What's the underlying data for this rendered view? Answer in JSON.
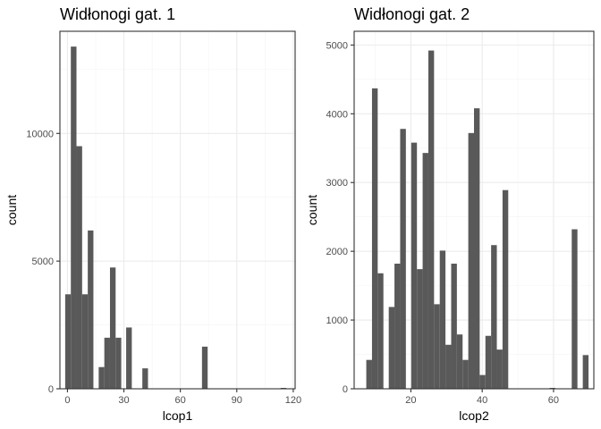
{
  "chart_data": [
    {
      "type": "bar",
      "subtype": "histogram",
      "title": "Widłonogi gat. 1",
      "xlabel": "lcop1",
      "ylabel": "count",
      "xlim": [
        -4,
        121
      ],
      "ylim": [
        0,
        14000
      ],
      "x_ticks": [
        0,
        30,
        60,
        90,
        120
      ],
      "y_ticks": [
        0,
        5000,
        10000
      ],
      "grid": true,
      "bar_color": "#595959",
      "bins": [
        {
          "x0": -1.2,
          "x1": 1.8,
          "count": 3700
        },
        {
          "x0": 1.8,
          "x1": 4.8,
          "count": 13400
        },
        {
          "x0": 4.8,
          "x1": 7.8,
          "count": 9500
        },
        {
          "x0": 7.8,
          "x1": 10.8,
          "count": 3700
        },
        {
          "x0": 10.8,
          "x1": 13.8,
          "count": 6200
        },
        {
          "x0": 16.6,
          "x1": 19.6,
          "count": 850
        },
        {
          "x0": 19.6,
          "x1": 22.6,
          "count": 2000
        },
        {
          "x0": 22.6,
          "x1": 25.6,
          "count": 4750
        },
        {
          "x0": 25.6,
          "x1": 28.6,
          "count": 2000
        },
        {
          "x0": 31.2,
          "x1": 34.2,
          "count": 2400
        },
        {
          "x0": 39.8,
          "x1": 42.8,
          "count": 800
        },
        {
          "x0": 71.5,
          "x1": 74.5,
          "count": 1650
        },
        {
          "x0": 113.3,
          "x1": 116.3,
          "count": 20
        }
      ]
    },
    {
      "type": "bar",
      "subtype": "histogram",
      "title": "Widłonogi gat. 2",
      "xlabel": "lcop2",
      "ylabel": "count",
      "xlim": [
        4.1,
        71.3
      ],
      "ylim": [
        0,
        5200
      ],
      "x_ticks": [
        20,
        40,
        60
      ],
      "y_ticks": [
        0,
        1000,
        2000,
        3000,
        4000,
        5000
      ],
      "grid": true,
      "bar_color": "#595959",
      "bins": [
        {
          "x0": 7.5,
          "x1": 9.1,
          "count": 420
        },
        {
          "x0": 9.1,
          "x1": 10.7,
          "count": 4370
        },
        {
          "x0": 10.7,
          "x1": 12.3,
          "count": 1680
        },
        {
          "x0": 13.8,
          "x1": 15.4,
          "count": 1190
        },
        {
          "x0": 15.4,
          "x1": 17.0,
          "count": 1820
        },
        {
          "x0": 17.0,
          "x1": 18.6,
          "count": 3780
        },
        {
          "x0": 20.1,
          "x1": 21.7,
          "count": 3580
        },
        {
          "x0": 21.7,
          "x1": 23.3,
          "count": 1740
        },
        {
          "x0": 23.3,
          "x1": 24.9,
          "count": 3430
        },
        {
          "x0": 24.9,
          "x1": 26.5,
          "count": 4920
        },
        {
          "x0": 26.5,
          "x1": 28.1,
          "count": 1230
        },
        {
          "x0": 28.1,
          "x1": 29.7,
          "count": 2010
        },
        {
          "x0": 29.7,
          "x1": 31.3,
          "count": 640
        },
        {
          "x0": 31.3,
          "x1": 32.9,
          "count": 1820
        },
        {
          "x0": 32.9,
          "x1": 34.5,
          "count": 790
        },
        {
          "x0": 34.5,
          "x1": 36.1,
          "count": 420
        },
        {
          "x0": 36.1,
          "x1": 37.7,
          "count": 3720
        },
        {
          "x0": 37.7,
          "x1": 39.3,
          "count": 4080
        },
        {
          "x0": 39.3,
          "x1": 40.9,
          "count": 200
        },
        {
          "x0": 40.9,
          "x1": 42.5,
          "count": 770
        },
        {
          "x0": 42.5,
          "x1": 44.1,
          "count": 2090
        },
        {
          "x0": 44.1,
          "x1": 45.7,
          "count": 570
        },
        {
          "x0": 45.7,
          "x1": 47.3,
          "count": 2890
        },
        {
          "x0": 58.9,
          "x1": 60.5,
          "count": 10
        },
        {
          "x0": 65.1,
          "x1": 66.7,
          "count": 2320
        },
        {
          "x0": 68.2,
          "x1": 69.8,
          "count": 490
        }
      ]
    }
  ]
}
